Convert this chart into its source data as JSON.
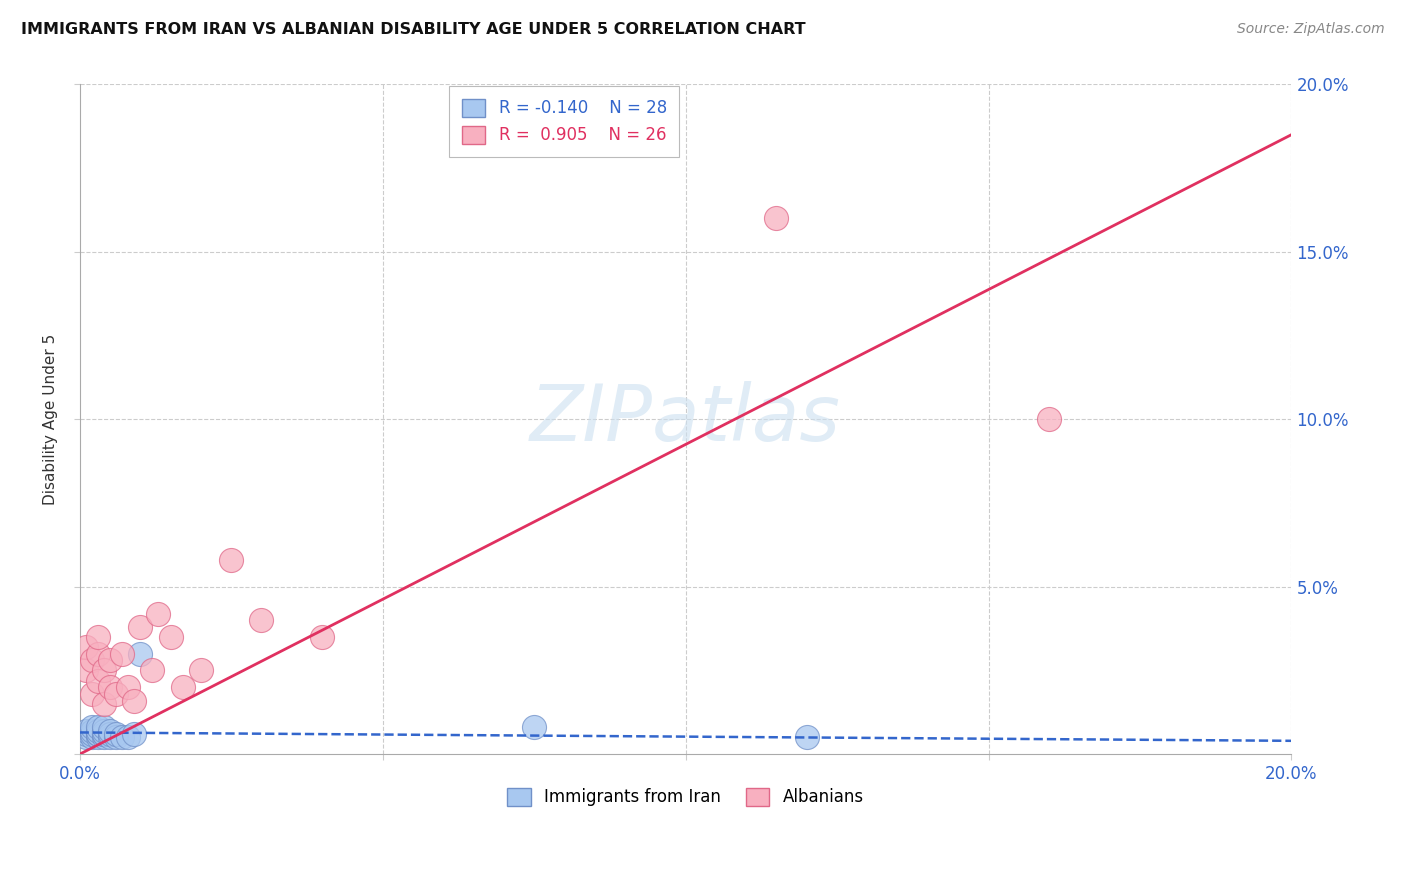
{
  "title": "IMMIGRANTS FROM IRAN VS ALBANIAN DISABILITY AGE UNDER 5 CORRELATION CHART",
  "source": "Source: ZipAtlas.com",
  "ylabel": "Disability Age Under 5",
  "xlim": [
    0,
    0.2
  ],
  "ylim": [
    0,
    0.2
  ],
  "xticks": [
    0.0,
    0.05,
    0.1,
    0.15,
    0.2
  ],
  "yticks": [
    0.0,
    0.05,
    0.1,
    0.15,
    0.2
  ],
  "xticklabels": [
    "0.0%",
    "",
    "",
    "",
    "20.0%"
  ],
  "yticklabels_right": [
    "20.0%",
    "15.0%",
    "10.0%",
    "5.0%",
    ""
  ],
  "iran_R": -0.14,
  "iran_N": 28,
  "albanian_R": 0.905,
  "albanian_N": 26,
  "iran_color": "#a8c8f0",
  "albanian_color": "#f8b0c0",
  "iran_edge_color": "#7090c8",
  "albanian_edge_color": "#e06888",
  "iran_line_color": "#3366cc",
  "albanian_line_color": "#e03060",
  "grid_color": "#cccccc",
  "tick_color": "#3366cc",
  "iran_line_x": [
    0.0,
    0.2
  ],
  "iran_line_y": [
    0.0065,
    0.004
  ],
  "albanian_line_x": [
    0.0,
    0.2
  ],
  "albanian_line_y": [
    0.0,
    0.185
  ],
  "iran_x": [
    0.001,
    0.001,
    0.001,
    0.002,
    0.002,
    0.002,
    0.002,
    0.003,
    0.003,
    0.003,
    0.003,
    0.003,
    0.004,
    0.004,
    0.004,
    0.004,
    0.004,
    0.005,
    0.005,
    0.005,
    0.006,
    0.006,
    0.007,
    0.008,
    0.009,
    0.01,
    0.075,
    0.12
  ],
  "iran_y": [
    0.005,
    0.006,
    0.007,
    0.005,
    0.006,
    0.007,
    0.008,
    0.005,
    0.006,
    0.006,
    0.007,
    0.008,
    0.005,
    0.006,
    0.006,
    0.007,
    0.008,
    0.005,
    0.006,
    0.007,
    0.005,
    0.006,
    0.005,
    0.005,
    0.006,
    0.03,
    0.008,
    0.005
  ],
  "albanian_x": [
    0.001,
    0.001,
    0.002,
    0.002,
    0.003,
    0.003,
    0.003,
    0.004,
    0.004,
    0.005,
    0.005,
    0.006,
    0.007,
    0.008,
    0.009,
    0.01,
    0.012,
    0.013,
    0.015,
    0.017,
    0.02,
    0.025,
    0.03,
    0.04,
    0.115,
    0.16
  ],
  "albanian_y": [
    0.025,
    0.032,
    0.018,
    0.028,
    0.022,
    0.03,
    0.035,
    0.025,
    0.015,
    0.02,
    0.028,
    0.018,
    0.03,
    0.02,
    0.016,
    0.038,
    0.025,
    0.042,
    0.035,
    0.02,
    0.025,
    0.058,
    0.04,
    0.035,
    0.16,
    0.1
  ]
}
